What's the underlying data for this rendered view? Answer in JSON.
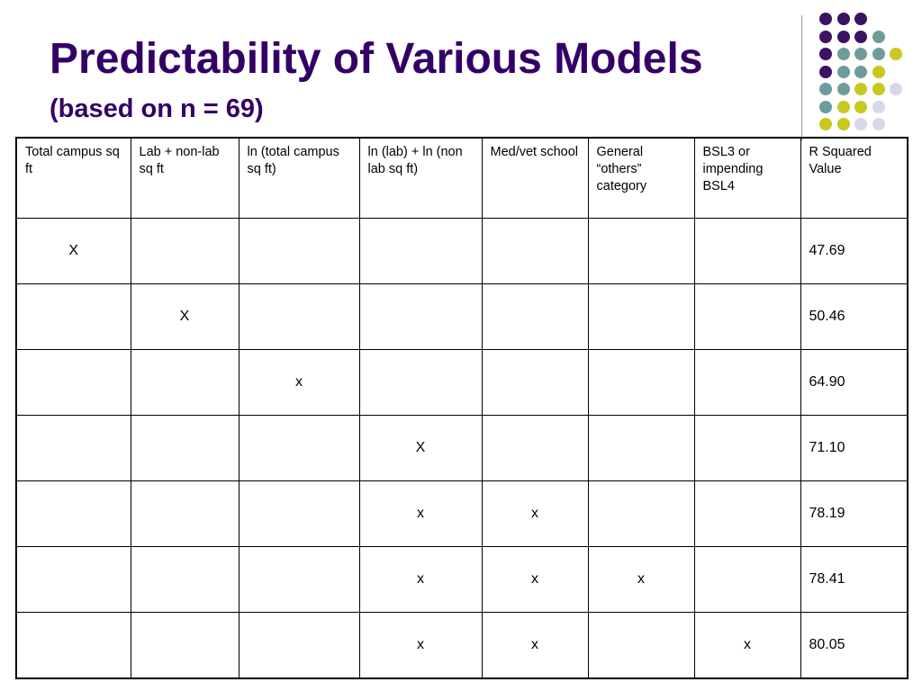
{
  "slide": {
    "title": "Predictability of Various Models",
    "subtitle": "(based on n = 69)"
  },
  "decoration": {
    "dot_colors": {
      "purple": "#3c1361",
      "teal": "#6e9c9c",
      "yellow": "#c8c81e",
      "lavender": "#d8d8ea"
    },
    "dot_rows": [
      [
        "purple",
        "purple",
        "purple",
        "",
        ""
      ],
      [
        "purple",
        "purple",
        "purple",
        "teal",
        ""
      ],
      [
        "purple",
        "teal",
        "teal",
        "teal",
        "yellow"
      ],
      [
        "purple",
        "teal",
        "teal",
        "yellow",
        ""
      ],
      [
        "teal",
        "teal",
        "yellow",
        "yellow",
        "lavender"
      ],
      [
        "teal",
        "yellow",
        "yellow",
        "lavender",
        ""
      ],
      [
        "yellow",
        "yellow",
        "lavender",
        "lavender",
        ""
      ],
      [
        "",
        "",
        "",
        "",
        ""
      ]
    ]
  },
  "table": {
    "headers": [
      "Total campus sq ft",
      "Lab + non-lab sq ft",
      "ln (total campus sq ft)",
      "ln (lab) + ln (non lab sq ft)",
      "Med/vet school",
      "General “others” category",
      "BSL3 or impending BSL4",
      "R Squared Value"
    ],
    "rows": [
      [
        "X",
        "",
        "",
        "",
        "",
        "",
        "",
        "47.69"
      ],
      [
        "",
        "X",
        "",
        "",
        "",
        "",
        "",
        "50.46"
      ],
      [
        "",
        "",
        "x",
        "",
        "",
        "",
        "",
        "64.90"
      ],
      [
        "",
        "",
        "",
        "X",
        "",
        "",
        "",
        "71.10"
      ],
      [
        "",
        "",
        "",
        "x",
        "x",
        "",
        "",
        "78.19"
      ],
      [
        "",
        "",
        "",
        "x",
        "x",
        "x",
        "",
        "78.41"
      ],
      [
        "",
        "",
        "",
        "x",
        "x",
        "",
        "x",
        "80.05"
      ]
    ]
  }
}
